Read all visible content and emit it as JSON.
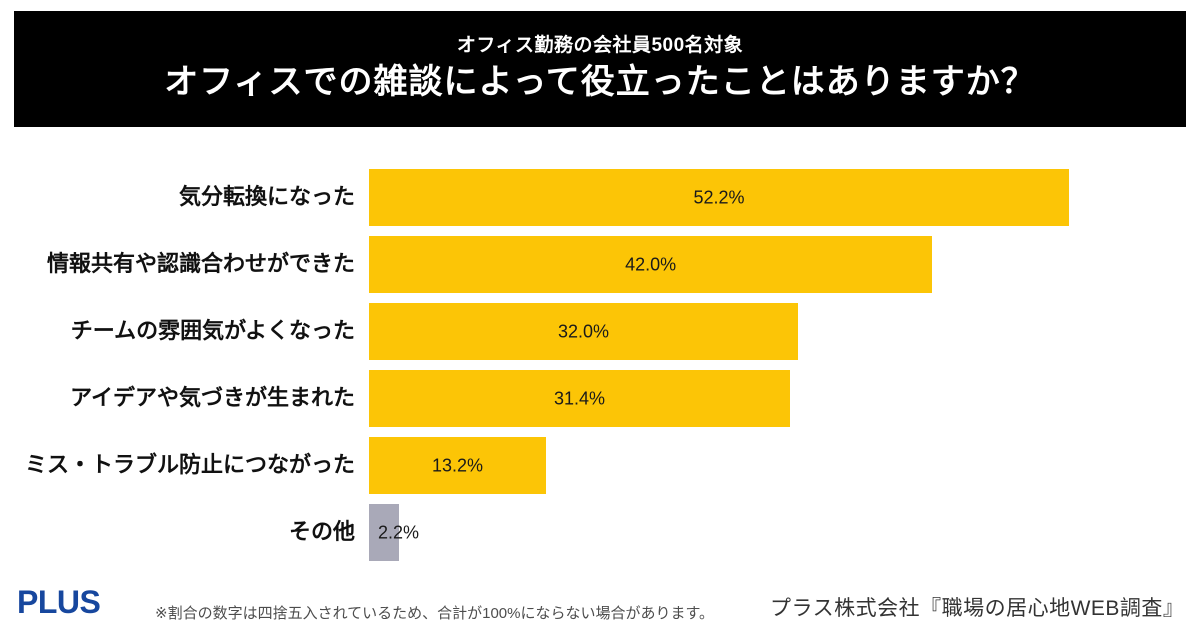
{
  "header": {
    "subtitle": "オフィス勤務の会社員500名対象",
    "title": "オフィスでの雑談によって役立ったことはありますか？",
    "bg_color": "#000000",
    "text_color": "#ffffff"
  },
  "chart_data": {
    "type": "bar",
    "orientation": "horizontal",
    "categories": [
      "気分転換になった",
      "情報共有や認識合わせができた",
      "チームの雰囲気がよくなった",
      "アイデアや気づきが生まれた",
      "ミス・トラブル防止につながった",
      "その他"
    ],
    "values": [
      52.2,
      42.0,
      32.0,
      31.4,
      13.2,
      2.2
    ],
    "value_labels": [
      "52.2%",
      "42.0%",
      "32.0%",
      "31.4%",
      "13.2%",
      "2.2%"
    ],
    "value_label_positions": [
      "inside",
      "inside",
      "inside",
      "inside",
      "inside",
      "end"
    ],
    "bar_colors": [
      "#FCC506",
      "#FCC506",
      "#FCC506",
      "#FCC506",
      "#FCC506",
      "#A9A9B8"
    ],
    "xlim": [
      0,
      52.2
    ],
    "grid": false,
    "legend": false,
    "title": "",
    "xlabel": "",
    "ylabel": ""
  },
  "footer": {
    "logo_text": "PLUS",
    "logo_color": "#17479E",
    "footnote": "※割合の数字は四捨五入されているため、合計が100%にならない場合があります。",
    "citation": "プラス株式会社『職場の居心地WEB調査』"
  }
}
